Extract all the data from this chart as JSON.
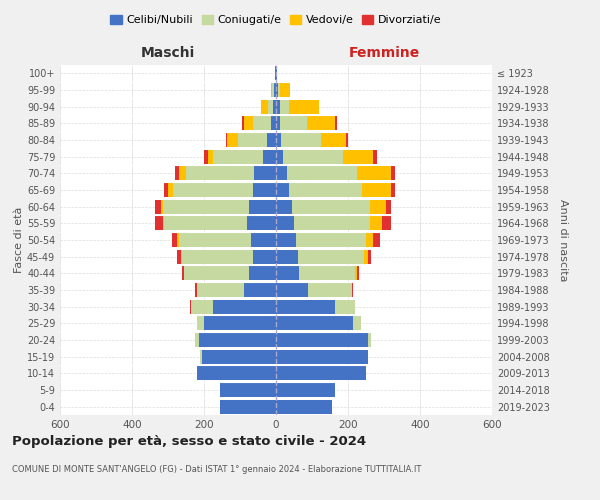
{
  "age_groups": [
    "0-4",
    "5-9",
    "10-14",
    "15-19",
    "20-24",
    "25-29",
    "30-34",
    "35-39",
    "40-44",
    "45-49",
    "50-54",
    "55-59",
    "60-64",
    "65-69",
    "70-74",
    "75-79",
    "80-84",
    "85-89",
    "90-94",
    "95-99",
    "100+"
  ],
  "birth_years": [
    "2019-2023",
    "2014-2018",
    "2009-2013",
    "2004-2008",
    "1999-2003",
    "1994-1998",
    "1989-1993",
    "1984-1988",
    "1979-1983",
    "1974-1978",
    "1969-1973",
    "1964-1968",
    "1959-1963",
    "1954-1958",
    "1949-1953",
    "1944-1948",
    "1939-1943",
    "1934-1938",
    "1929-1933",
    "1924-1928",
    "≤ 1923"
  ],
  "colors": {
    "celibi": "#4472c4",
    "coniugati": "#c5d9a0",
    "vedovi": "#ffc000",
    "divorziati": "#e03030"
  },
  "maschi": {
    "celibi": [
      155,
      155,
      220,
      205,
      215,
      200,
      175,
      90,
      75,
      65,
      70,
      80,
      75,
      65,
      60,
      35,
      25,
      15,
      8,
      5,
      2
    ],
    "coniugati": [
      0,
      0,
      0,
      5,
      10,
      20,
      60,
      130,
      180,
      195,
      200,
      230,
      240,
      220,
      190,
      140,
      80,
      50,
      15,
      5,
      0
    ],
    "vedovi": [
      0,
      0,
      0,
      0,
      0,
      0,
      0,
      0,
      0,
      5,
      5,
      5,
      5,
      15,
      20,
      15,
      30,
      25,
      20,
      5,
      0
    ],
    "divorziati": [
      0,
      0,
      0,
      0,
      0,
      0,
      5,
      5,
      5,
      10,
      15,
      20,
      15,
      10,
      10,
      10,
      5,
      5,
      0,
      0,
      0
    ]
  },
  "femmine": {
    "celibi": [
      155,
      165,
      250,
      255,
      255,
      215,
      165,
      90,
      65,
      60,
      55,
      50,
      45,
      35,
      30,
      20,
      15,
      10,
      10,
      5,
      2
    ],
    "coniugati": [
      0,
      0,
      0,
      0,
      10,
      20,
      55,
      120,
      155,
      185,
      195,
      210,
      215,
      205,
      195,
      165,
      110,
      75,
      25,
      5,
      0
    ],
    "vedovi": [
      0,
      0,
      0,
      0,
      0,
      0,
      0,
      0,
      5,
      10,
      20,
      35,
      45,
      80,
      95,
      85,
      70,
      80,
      85,
      30,
      2
    ],
    "divorziati": [
      0,
      0,
      0,
      0,
      0,
      0,
      0,
      5,
      5,
      10,
      20,
      25,
      15,
      10,
      10,
      10,
      5,
      5,
      0,
      0,
      0
    ]
  },
  "title": "Popolazione per età, sesso e stato civile - 2024",
  "subtitle": "COMUNE DI MONTE SANT'ANGELO (FG) - Dati ISTAT 1° gennaio 2024 - Elaborazione TUTTITALIA.IT",
  "xlabel_left": "Maschi",
  "xlabel_right": "Femmine",
  "ylabel_left": "Fasce di età",
  "ylabel_right": "Anni di nascita",
  "xlim": 600,
  "legend_labels": [
    "Celibi/Nubili",
    "Coniugati/e",
    "Vedovi/e",
    "Divorziati/e"
  ],
  "bg_color": "#f0f0f0",
  "plot_bg_color": "#ffffff"
}
